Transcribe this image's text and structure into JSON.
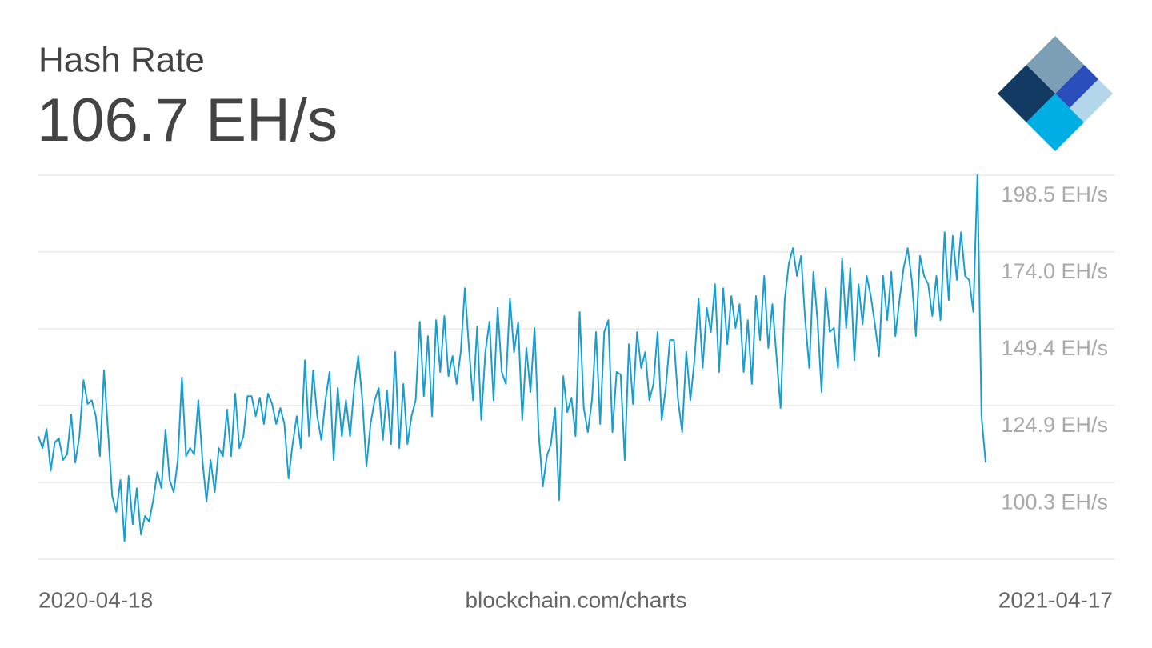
{
  "chart_data": {
    "type": "line",
    "title": "Hash Rate",
    "subtitle": "106.7 EH/s",
    "source": "blockchain.com/charts",
    "color": "#1a9ed0",
    "grid": true,
    "ylim": [
      75.8,
      198.5
    ],
    "yticks": [
      {
        "value": 198.5,
        "label": "198.5 EH/s"
      },
      {
        "value": 174.0,
        "label": "174.0 EH/s"
      },
      {
        "value": 149.4,
        "label": "149.4 EH/s"
      },
      {
        "value": 124.9,
        "label": "124.9 EH/s"
      },
      {
        "value": 100.3,
        "label": "100.3 EH/s"
      }
    ],
    "categories": [
      "2020-04-18",
      null,
      null,
      null,
      null,
      null,
      null,
      null,
      null,
      null,
      null,
      null,
      null,
      null,
      null,
      null,
      null,
      null,
      null,
      null,
      null,
      null,
      null,
      null,
      null,
      null,
      null,
      null,
      null,
      null,
      null,
      null,
      null,
      null,
      null,
      null,
      null,
      null,
      null,
      null,
      null,
      null,
      null,
      null,
      null,
      null,
      null,
      null,
      null,
      null,
      null,
      null,
      null,
      null,
      null,
      null,
      null,
      null,
      null,
      null,
      null,
      null,
      null,
      null,
      null,
      null,
      null,
      null,
      null,
      null,
      null,
      null,
      null,
      null,
      null,
      null,
      null,
      null,
      null,
      null,
      null,
      null,
      null,
      null,
      null,
      null,
      null,
      null,
      null,
      null,
      null,
      null,
      null,
      null,
      null,
      null,
      null,
      null,
      null,
      null,
      null,
      null,
      null,
      null,
      null,
      null,
      null,
      null,
      null,
      null,
      null,
      null,
      null,
      null,
      null,
      null,
      null,
      null,
      null,
      null,
      null,
      null,
      null,
      null,
      null,
      null,
      null,
      null,
      null,
      null,
      null,
      null,
      null,
      null,
      null,
      null,
      null,
      null,
      null,
      null,
      null,
      null,
      null,
      null,
      null,
      null,
      null,
      null,
      null,
      null,
      null,
      null,
      null,
      null,
      null,
      null,
      null,
      null,
      null,
      null,
      null,
      null,
      null,
      null,
      null,
      null,
      null,
      null,
      null,
      null,
      null,
      null,
      null,
      null,
      null,
      null,
      null,
      null,
      null,
      null,
      null,
      null,
      null,
      null,
      null,
      null,
      null,
      null,
      null,
      null,
      null,
      null,
      null,
      null,
      null,
      null,
      null,
      null,
      null,
      null,
      null,
      null,
      null,
      null,
      null,
      null,
      null,
      null,
      null,
      null,
      null,
      null,
      null,
      null,
      null,
      null,
      null,
      null,
      null,
      null,
      null,
      null,
      null,
      null,
      null,
      null,
      null,
      null,
      null,
      null,
      null,
      "2021-04-17"
    ],
    "values": [
      115.1,
      111.3,
      117.4,
      104.1,
      113.1,
      114.4,
      107.5,
      109.3,
      122.0,
      106.7,
      115.1,
      133.0,
      125.4,
      126.6,
      121.5,
      108.7,
      136.1,
      116.4,
      96.0,
      90.9,
      101.1,
      81.6,
      102.4,
      87.0,
      98.5,
      83.7,
      89.6,
      87.8,
      94.7,
      103.6,
      98.5,
      117.2,
      101.1,
      97.2,
      107.5,
      133.8,
      108.7,
      111.3,
      109.3,
      126.6,
      107.5,
      94.2,
      107.5,
      97.2,
      111.3,
      108.7,
      123.6,
      108.7,
      128.7,
      111.3,
      115.1,
      127.9,
      127.9,
      121.5,
      127.4,
      119.0,
      128.7,
      125.4,
      119.0,
      124.1,
      119.0,
      101.6,
      112.6,
      121.5,
      111.3,
      139.4,
      115.1,
      136.1,
      121.5,
      113.9,
      126.6,
      135.6,
      107.5,
      130.5,
      115.1,
      126.6,
      115.1,
      130.5,
      140.7,
      126.6,
      105.4,
      119.0,
      126.6,
      130.5,
      113.9,
      129.7,
      112.6,
      142.0,
      111.3,
      131.8,
      112.6,
      121.5,
      126.6,
      151.7,
      127.9,
      147.1,
      121.5,
      152.2,
      135.6,
      153.5,
      134.3,
      140.7,
      131.8,
      142.0,
      162.4,
      143.3,
      126.6,
      150.2,
      120.3,
      142.0,
      151.7,
      126.6,
      156.1,
      135.6,
      131.8,
      159.1,
      142.0,
      151.5,
      120.3,
      143.3,
      129.2,
      149.7,
      116.4,
      99.0,
      108.7,
      112.6,
      124.1,
      94.7,
      134.3,
      122.8,
      127.4,
      115.1,
      154.8,
      124.1,
      116.4,
      126.6,
      148.4,
      119.0,
      148.4,
      152.2,
      116.4,
      135.6,
      134.8,
      107.5,
      144.5,
      125.4,
      148.4,
      136.9,
      142.0,
      126.6,
      131.8,
      148.4,
      120.3,
      130.5,
      145.8,
      145.8,
      126.6,
      116.4,
      142.0,
      126.6,
      139.4,
      159.1,
      136.9,
      156.1,
      148.4,
      163.7,
      135.6,
      162.4,
      144.5,
      159.9,
      149.7,
      157.3,
      135.6,
      152.2,
      131.8,
      159.9,
      145.8,
      166.3,
      143.3,
      157.3,
      140.7,
      124.1,
      158.6,
      170.1,
      175.2,
      166.3,
      172.7,
      152.2,
      136.9,
      167.6,
      152.2,
      129.2,
      162.4,
      148.4,
      149.7,
      136.9,
      171.9,
      149.7,
      168.8,
      139.4,
      163.7,
      150.9,
      166.3,
      159.9,
      150.9,
      140.7,
      166.3,
      152.2,
      167.6,
      147.1,
      158.6,
      168.8,
      175.2,
      165.0,
      147.1,
      172.7,
      166.3,
      163.7,
      153.5,
      166.3,
      152.2,
      180.3,
      158.6,
      179.1,
      165.0,
      180.3,
      166.3,
      165.0,
      154.8,
      198.5,
      121.5,
      106.7
    ]
  }
}
